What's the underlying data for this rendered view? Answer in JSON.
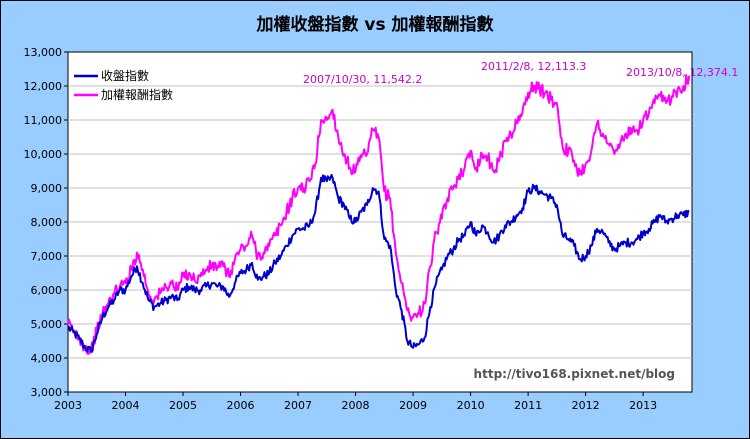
{
  "chart_data": {
    "type": "line",
    "title": "加權收盤指數 vs 加權報酬指數",
    "xlabel": "",
    "ylabel": "",
    "x_tick_labels": [
      "2003",
      "2004",
      "2005",
      "2006",
      "2007",
      "2008",
      "2009",
      "2010",
      "2011",
      "2012",
      "2013"
    ],
    "xlim": [
      2003.0,
      2013.85
    ],
    "ylim": [
      3000,
      13000
    ],
    "y_tick_values": [
      3000,
      4000,
      5000,
      6000,
      7000,
      8000,
      9000,
      10000,
      11000,
      12000,
      13000
    ],
    "y_tick_labels": [
      "3,000",
      "4,000",
      "5,000",
      "6,000",
      "7,000",
      "8,000",
      "9,000",
      "10,000",
      "11,000",
      "12,000",
      "13,000"
    ],
    "grid": true,
    "legend_position": "top-left",
    "series": [
      {
        "name": "收盤指數",
        "color": "#0000cc",
        "x": [
          2003.0,
          2003.1,
          2003.2,
          2003.3,
          2003.4,
          2003.5,
          2003.6,
          2003.7,
          2003.8,
          2003.9,
          2004.0,
          2004.1,
          2004.2,
          2004.3,
          2004.4,
          2004.5,
          2004.6,
          2004.7,
          2004.8,
          2004.9,
          2005.0,
          2005.1,
          2005.2,
          2005.3,
          2005.4,
          2005.5,
          2005.6,
          2005.7,
          2005.8,
          2005.9,
          2006.0,
          2006.1,
          2006.2,
          2006.3,
          2006.4,
          2006.5,
          2006.6,
          2006.7,
          2006.8,
          2006.9,
          2007.0,
          2007.1,
          2007.2,
          2007.3,
          2007.4,
          2007.5,
          2007.6,
          2007.7,
          2007.8,
          2007.9,
          2008.0,
          2008.1,
          2008.2,
          2008.3,
          2008.4,
          2008.5,
          2008.6,
          2008.7,
          2008.8,
          2008.9,
          2009.0,
          2009.1,
          2009.2,
          2009.3,
          2009.4,
          2009.5,
          2009.6,
          2009.7,
          2009.8,
          2009.9,
          2010.0,
          2010.1,
          2010.2,
          2010.3,
          2010.4,
          2010.5,
          2010.6,
          2010.7,
          2010.8,
          2010.9,
          2011.0,
          2011.1,
          2011.2,
          2011.3,
          2011.4,
          2011.5,
          2011.6,
          2011.7,
          2011.8,
          2011.9,
          2012.0,
          2012.1,
          2012.2,
          2012.3,
          2012.4,
          2012.5,
          2012.6,
          2012.7,
          2012.8,
          2012.9,
          2013.0,
          2013.1,
          2013.2,
          2013.3,
          2013.4,
          2013.5,
          2013.6,
          2013.7,
          2013.8
        ],
        "values": [
          4900,
          4750,
          4550,
          4300,
          4200,
          4700,
          5200,
          5500,
          5700,
          6000,
          6000,
          6400,
          6700,
          6200,
          5700,
          5500,
          5600,
          5700,
          5800,
          5700,
          6000,
          6100,
          6000,
          6000,
          6100,
          6200,
          6100,
          6100,
          5800,
          6200,
          6500,
          6600,
          6800,
          6300,
          6400,
          6500,
          6800,
          7000,
          7300,
          7600,
          7800,
          7800,
          7900,
          8300,
          9300,
          9200,
          9300,
          8700,
          8500,
          8100,
          8000,
          8300,
          8500,
          9000,
          8900,
          7500,
          7300,
          6000,
          5400,
          4500,
          4300,
          4400,
          4600,
          5500,
          6200,
          6600,
          7000,
          7200,
          7500,
          7600,
          8000,
          7600,
          7900,
          7700,
          7400,
          7600,
          7900,
          8000,
          8200,
          8400,
          8900,
          9000,
          8900,
          8800,
          8700,
          8500,
          7600,
          7500,
          7300,
          6900,
          7000,
          7300,
          7800,
          7700,
          7400,
          7200,
          7300,
          7400,
          7400,
          7500,
          7700,
          7800,
          8000,
          8200,
          8000,
          8100,
          8200,
          8200,
          8300
        ]
      },
      {
        "name": "加權報酬指數",
        "color": "#ff00ff",
        "x": [
          2003.0,
          2003.1,
          2003.2,
          2003.3,
          2003.4,
          2003.5,
          2003.6,
          2003.7,
          2003.8,
          2003.9,
          2004.0,
          2004.1,
          2004.2,
          2004.3,
          2004.4,
          2004.5,
          2004.6,
          2004.7,
          2004.8,
          2004.9,
          2005.0,
          2005.1,
          2005.2,
          2005.3,
          2005.4,
          2005.5,
          2005.6,
          2005.7,
          2005.8,
          2005.9,
          2006.0,
          2006.1,
          2006.2,
          2006.3,
          2006.4,
          2006.5,
          2006.6,
          2006.7,
          2006.8,
          2006.9,
          2007.0,
          2007.1,
          2007.2,
          2007.3,
          2007.4,
          2007.5,
          2007.6,
          2007.7,
          2007.8,
          2007.9,
          2008.0,
          2008.1,
          2008.2,
          2008.3,
          2008.4,
          2008.5,
          2008.6,
          2008.7,
          2008.8,
          2008.9,
          2009.0,
          2009.1,
          2009.2,
          2009.3,
          2009.4,
          2009.5,
          2009.6,
          2009.7,
          2009.8,
          2009.9,
          2010.0,
          2010.1,
          2010.2,
          2010.3,
          2010.4,
          2010.5,
          2010.6,
          2010.7,
          2010.8,
          2010.9,
          2011.0,
          2011.1,
          2011.2,
          2011.3,
          2011.4,
          2011.5,
          2011.6,
          2011.7,
          2011.8,
          2011.9,
          2012.0,
          2012.1,
          2012.2,
          2012.3,
          2012.4,
          2012.5,
          2012.6,
          2012.7,
          2012.8,
          2012.9,
          2013.0,
          2013.1,
          2013.2,
          2013.3,
          2013.4,
          2013.5,
          2013.6,
          2013.7,
          2013.8
        ],
        "values": [
          5000,
          4800,
          4600,
          4300,
          4200,
          4800,
          5300,
          5600,
          5900,
          6100,
          6200,
          6600,
          7100,
          6600,
          5900,
          5700,
          5900,
          6100,
          6200,
          6000,
          6400,
          6500,
          6300,
          6400,
          6600,
          6700,
          6700,
          6700,
          6400,
          6900,
          7200,
          7300,
          7600,
          7000,
          7100,
          7300,
          7600,
          7900,
          8300,
          8700,
          9000,
          9000,
          9200,
          9700,
          11000,
          11000,
          11300,
          10500,
          10000,
          9600,
          9500,
          9900,
          10000,
          10700,
          10500,
          8900,
          8700,
          7100,
          6200,
          5400,
          5200,
          5300,
          5600,
          6700,
          7700,
          8100,
          8700,
          9000,
          9400,
          9600,
          10100,
          9600,
          10000,
          9900,
          9500,
          9800,
          10400,
          10600,
          10900,
          11200,
          11800,
          12000,
          11900,
          11800,
          11600,
          11500,
          10200,
          10100,
          9800,
          9400,
          9700,
          10100,
          10900,
          10600,
          10300,
          10000,
          10300,
          10600,
          10600,
          10700,
          11000,
          11200,
          11500,
          11700,
          11500,
          11700,
          11900,
          12000,
          12300
        ]
      }
    ],
    "annotations": [
      {
        "text": "2007/10/30, 11,542.2",
        "x": 2007.83,
        "y": 11542.2
      },
      {
        "text": "2011/2/8, 12,113.3",
        "x": 2011.1,
        "y": 12113.3
      },
      {
        "text": "2013/10/8, 12,374.1",
        "x": 2013.77,
        "y": 12374.1
      }
    ],
    "watermark": "http://tivo168.pixnet.net/blog"
  },
  "colors": {
    "chart_background": "#99ccff",
    "plot_background": "#ffffff",
    "annotation": "#cc00cc",
    "grid": "#c0c0c0"
  }
}
